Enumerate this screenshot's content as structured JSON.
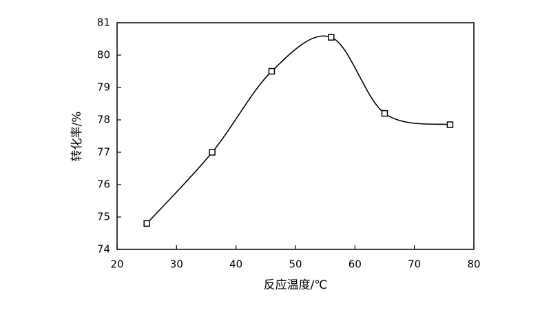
{
  "chart_data": {
    "type": "line",
    "x_label": "反应温度/℃",
    "y_label": "转化率/%",
    "x": [
      25,
      36,
      46,
      56,
      65,
      76
    ],
    "series": [
      {
        "color": "#000000",
        "values": [
          74.8,
          77.0,
          79.5,
          80.55,
          78.2,
          77.85
        ]
      }
    ],
    "xlim": [
      20,
      80
    ],
    "xticks": [
      20,
      30,
      40,
      50,
      60,
      70,
      80
    ],
    "ylim": [
      74,
      81
    ],
    "yticks": [
      74,
      75,
      76,
      77,
      78,
      79,
      80,
      81
    ],
    "smooth": true,
    "marker": "square"
  }
}
